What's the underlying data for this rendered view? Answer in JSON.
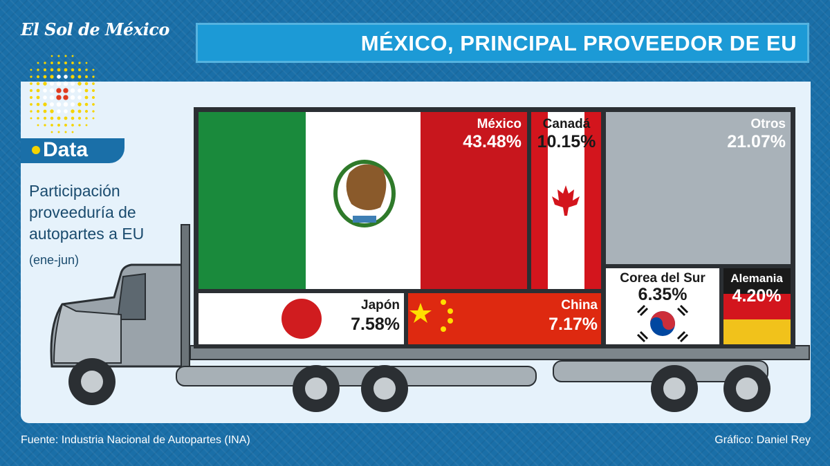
{
  "brand": "El Sol de México",
  "title": "MÉXICO, PRINCIPAL PROVEEDOR DE EU",
  "section_label": "Data",
  "subtitle_lines": [
    "Participación",
    "proveeduría de",
    "autopartes a EU"
  ],
  "period": "(ene-jun)",
  "source": "Fuente: Industria Nacional de Autopartes (INA)",
  "credit": "Gráfico: Daniel Rey",
  "colors": {
    "background": "#1a6fa8",
    "title_bar": "#1c9ad6",
    "mexico_green": "#1a8a3c",
    "mexico_red": "#c8161d",
    "canada_red": "#d3151d",
    "others_gray": "#a9b2b9",
    "germany_gold": "#f1c21b"
  },
  "chart_data": {
    "type": "treemap",
    "unit": "%",
    "items": [
      {
        "name": "México",
        "value": 43.48,
        "label": "43.48%",
        "flag": "mexico-flag"
      },
      {
        "name": "Canadá",
        "value": 10.15,
        "label": "10.15%",
        "flag": "canada-flag"
      },
      {
        "name": "Otros",
        "value": 21.07,
        "label": "21.07%",
        "flag": "none"
      },
      {
        "name": "Japón",
        "value": 7.58,
        "label": "7.58%",
        "flag": "japan-flag"
      },
      {
        "name": "China",
        "value": 7.17,
        "label": "7.17%",
        "flag": "china-flag"
      },
      {
        "name": "Corea del Sur",
        "value": 6.35,
        "label": "6.35%",
        "flag": "south-korea-flag"
      },
      {
        "name": "Alemania",
        "value": 4.2,
        "label": "4.20%",
        "flag": "germany-flag"
      }
    ]
  }
}
